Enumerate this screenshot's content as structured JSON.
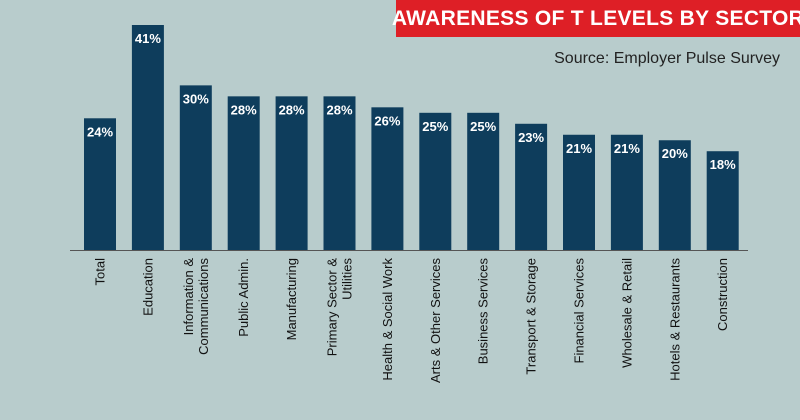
{
  "header": {
    "title": "AWARENESS OF T LEVELS BY SECTOR",
    "source": "Source: Employer Pulse Survey"
  },
  "colors": {
    "background": "#b8cccc",
    "bar": "#0e3d5c",
    "banner": "#de1f26"
  },
  "chart_data": {
    "type": "bar",
    "title": "AWARENESS OF T LEVELS BY SECTOR",
    "categories": [
      [
        "Total"
      ],
      [
        "Education"
      ],
      [
        "Information &",
        "Communications"
      ],
      [
        "Public Admin."
      ],
      [
        "Manufacturing"
      ],
      [
        "Primary Sector &",
        "Utilities"
      ],
      [
        "Health & Social Work"
      ],
      [
        "Arts & Other Services"
      ],
      [
        "Business Services"
      ],
      [
        "Transport & Storage"
      ],
      [
        "Financial Services"
      ],
      [
        "Wholesale & Retail"
      ],
      [
        "Hotels & Restaurants"
      ],
      [
        "Construction"
      ]
    ],
    "values": [
      24,
      41,
      30,
      28,
      28,
      28,
      26,
      25,
      25,
      23,
      21,
      21,
      20,
      18
    ],
    "value_labels": [
      "24%",
      "41%",
      "30%",
      "28%",
      "28%",
      "28%",
      "26%",
      "25%",
      "25%",
      "23%",
      "21%",
      "21%",
      "20%",
      "18%"
    ],
    "ylim": [
      0,
      41
    ],
    "grid": false,
    "legend": "none"
  }
}
